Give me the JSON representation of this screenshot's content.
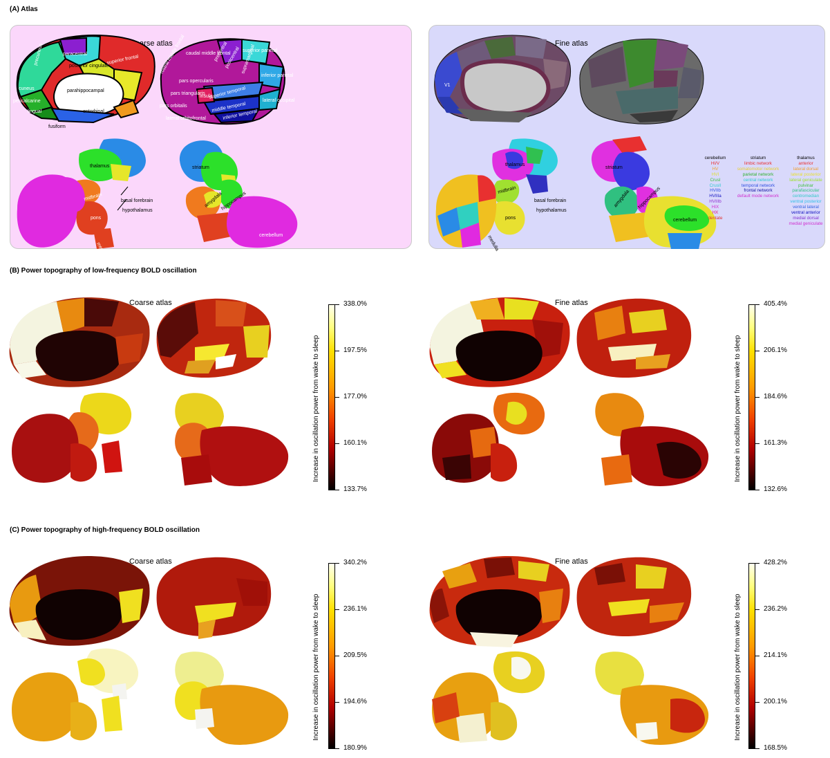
{
  "sections": {
    "a": "(A) Atlas",
    "b": "(B) Power topography of low-frequency BOLD oscillation",
    "c": "(C) Power topography of high-frequency BOLD oscillation"
  },
  "atlas_titles": {
    "coarse": "Coarse atlas",
    "fine": "Fine atlas"
  },
  "coarse_labels": {
    "paracentral": "paracentral",
    "superior_frontal": "superior frontal",
    "precuneus": "precuneus",
    "posterior_cingulate": "posterior cingulate",
    "cuneus": "cuneus",
    "pericalcarine": "pericalcarine",
    "lingual": "lingual",
    "fusiform": "fusiform",
    "parahippocampal": "parahippocampal",
    "entorhinal": "entorhinal",
    "caudal_middle_frontal": "caudal middle frontal",
    "rostral_middle_frontal": "rostral middle frontal",
    "pars_opercularis": "pars opercularis",
    "pars_triangularis": "pars triangularis",
    "pars_orbitalis": "pars orbitalis",
    "lateral_orbitofrontal": "lateral orbitofrontal",
    "insula": "insula",
    "precentral": "precentral",
    "postcentral": "postcentral",
    "superior_parietal": "superior parietal",
    "supramarginal": "supramarginal",
    "inferior_parietal": "inferior parietal",
    "superior_temporal": "superior temporal",
    "middle_temporal": "middle temporal",
    "inferior_temporal": "inferior temporal",
    "lateral_occipital": "lateral occipital",
    "thalamus": "thalamus",
    "midbrain": "midbrain",
    "pons": "pons",
    "medulla": "medulla",
    "basal_forebrain": "basal forebrain",
    "hypothalamus": "hypothalamus",
    "striatum": "striatum",
    "amygdala": "amygdala",
    "hippocampus": "hippocampus",
    "cerebellum": "cerebellum"
  },
  "fine_legend": {
    "cerebellum": {
      "header": "cerebellum",
      "items": [
        {
          "t": "HI/V",
          "c": "#e83030"
        },
        {
          "t": "HV",
          "c": "#f0a030"
        },
        {
          "t": "HVI",
          "c": "#e0e030"
        },
        {
          "t": "CrusI",
          "c": "#40c040"
        },
        {
          "t": "CrusII",
          "c": "#30c8d0"
        },
        {
          "t": "HVIIb",
          "c": "#3050e0"
        },
        {
          "t": "HVIIIa",
          "c": "#1010c0"
        },
        {
          "t": "HVIIIb",
          "c": "#9030d0"
        },
        {
          "t": "HIX",
          "c": "#d030d0"
        },
        {
          "t": "HX",
          "c": "#e02080"
        },
        {
          "t": "dentate",
          "c": "#e03030"
        }
      ]
    },
    "striatum": {
      "header": "striatum",
      "items": [
        {
          "t": "limbic network",
          "c": "#e83030"
        },
        {
          "t": "somatomotor network",
          "c": "#e8d030"
        },
        {
          "t": "parietal network",
          "c": "#30b030"
        },
        {
          "t": "central network",
          "c": "#30c8d0"
        },
        {
          "t": "temporal network",
          "c": "#3050e0"
        },
        {
          "t": "frontal network",
          "c": "#1010a0"
        },
        {
          "t": "default mode network",
          "c": "#d030d0"
        }
      ]
    },
    "thalamus": {
      "header": "thalamus",
      "items": [
        {
          "t": "anterior",
          "c": "#e83030"
        },
        {
          "t": "lateral dorsal",
          "c": "#f0a030"
        },
        {
          "t": "lateral posterior",
          "c": "#e8e030"
        },
        {
          "t": "lateral geniculate",
          "c": "#a0e030"
        },
        {
          "t": "pulvinar",
          "c": "#40c040"
        },
        {
          "t": "parafascicular",
          "c": "#30c080"
        },
        {
          "t": "centromedian",
          "c": "#30c8c8"
        },
        {
          "t": "ventral posterior",
          "c": "#30c0e8"
        },
        {
          "t": "ventral lateral",
          "c": "#3060e0"
        },
        {
          "t": "ventral anterior",
          "c": "#1010c0"
        },
        {
          "t": "medial dorsal",
          "c": "#8030d0"
        },
        {
          "t": "medial geniculate",
          "c": "#d030d0"
        }
      ]
    }
  },
  "colorbars": {
    "label": "Increase in oscillation power from wake to sleep",
    "b_coarse": [
      "338.0%",
      "197.5%",
      "177.0%",
      "160.1%",
      "133.7%"
    ],
    "b_fine": [
      "405.4%",
      "206.1%",
      "184.6%",
      "161.3%",
      "132.6%"
    ],
    "c_coarse": [
      "340.2%",
      "236.1%",
      "209.5%",
      "194.6%",
      "180.9%"
    ],
    "c_fine": [
      "428.2%",
      "236.2%",
      "214.1%",
      "200.1%",
      "168.5%"
    ]
  }
}
